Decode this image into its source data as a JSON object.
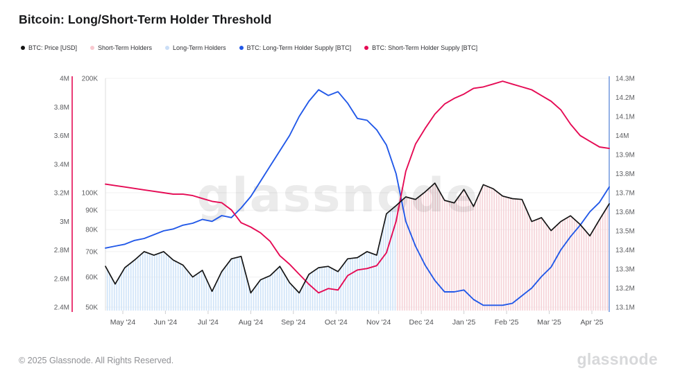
{
  "title": "Bitcoin: Long/Short-Term Holder Threshold",
  "watermark": "glassnode",
  "footer": {
    "copyright": "© 2025 Glassnode. All Rights Reserved.",
    "logo_text": "glassnode"
  },
  "legend": [
    {
      "label": "BTC: Price [USD]",
      "color": "#141414"
    },
    {
      "label": "Short-Term Holders",
      "color": "#f8c8cf"
    },
    {
      "label": "Long-Term Holders",
      "color": "#cadef7"
    },
    {
      "label": "BTC: Long-Term Holder Supply [BTC]",
      "color": "#2158e8"
    },
    {
      "label": "BTC: Short-Term Holder Supply [BTC]",
      "color": "#e50a54"
    }
  ],
  "chart_data": {
    "type": "line",
    "title": "Bitcoin: Long/Short-Term Holder Threshold",
    "x_labels": [
      "May '24",
      "Jun '24",
      "Jul '24",
      "Aug '24",
      "Sep '24",
      "Oct '24",
      "Nov '24",
      "Dec '24",
      "Jan '25",
      "Feb '25",
      "Mar '25",
      "Apr '25"
    ],
    "axes": {
      "sth_supply": {
        "side": "left-outer",
        "axis_color": "#e50a54",
        "tick_labels": [
          "4M",
          "3.8M",
          "3.6M",
          "3.4M",
          "3.2M",
          "3M",
          "2.8M",
          "2.6M",
          "2.4M"
        ],
        "range_m_btc": [
          2.4,
          4.0
        ],
        "scale": "linear"
      },
      "price_usd": {
        "side": "left-inner",
        "axis_color": "#d9d9d9",
        "tick_labels": [
          "200K",
          "100K",
          "90K",
          "80K",
          "70K",
          "60K",
          "50K"
        ],
        "tick_values_k": [
          200,
          100,
          90,
          80,
          70,
          60,
          50
        ],
        "range_k_usd": [
          50,
          200
        ],
        "scale": "log"
      },
      "lth_supply": {
        "side": "right",
        "axis_color": "#5b87d9",
        "tick_labels": [
          "14.3M",
          "14.2M",
          "14.1M",
          "14M",
          "13.9M",
          "13.8M",
          "13.7M",
          "13.6M",
          "13.5M",
          "13.4M",
          "13.3M",
          "13.2M",
          "13.1M"
        ],
        "range_m_btc": [
          13.1,
          14.3
        ],
        "scale": "linear"
      }
    },
    "grid": "horizontal-only",
    "legend_position": "top",
    "series": [
      {
        "name": "BTC: Price [USD]",
        "axis": "price_usd",
        "color": "#141414",
        "unit": "thousand USD",
        "sampling": "weekly Apr 2024 - Apr 2025",
        "values": [
          64,
          57.5,
          63.5,
          66.5,
          70,
          68.5,
          70,
          66.5,
          64.5,
          60,
          62.5,
          55,
          62,
          67,
          68,
          54.5,
          59,
          60.5,
          64,
          58,
          54.5,
          61,
          63.5,
          64,
          62,
          67,
          67.5,
          70,
          68.5,
          88,
          92.5,
          97.5,
          96,
          100.5,
          106,
          95.5,
          94,
          102,
          92,
          105,
          102.5,
          98,
          96.5,
          96,
          84,
          86,
          79.5,
          84,
          87,
          82.5,
          77,
          85,
          93.5
        ]
      },
      {
        "name": "BTC: Short-Term Holder Supply [BTC]",
        "axis": "sth_supply",
        "color": "#e50a54",
        "unit": "million BTC",
        "sampling": "weekly Apr 2024 - Apr 2025",
        "values": [
          3.26,
          3.25,
          3.24,
          3.23,
          3.22,
          3.21,
          3.2,
          3.19,
          3.19,
          3.18,
          3.16,
          3.14,
          3.13,
          3.08,
          2.99,
          2.96,
          2.92,
          2.86,
          2.76,
          2.7,
          2.63,
          2.56,
          2.5,
          2.53,
          2.52,
          2.62,
          2.66,
          2.67,
          2.69,
          2.78,
          3.0,
          3.35,
          3.54,
          3.65,
          3.75,
          3.82,
          3.86,
          3.89,
          3.93,
          3.94,
          3.96,
          3.98,
          3.96,
          3.94,
          3.92,
          3.88,
          3.84,
          3.78,
          3.68,
          3.6,
          3.56,
          3.52,
          3.51
        ]
      },
      {
        "name": "BTC: Long-Term Holder Supply [BTC]",
        "axis": "lth_supply",
        "color": "#2158e8",
        "unit": "million BTC",
        "sampling": "weekly Apr 2024 - Apr 2025",
        "values": [
          13.41,
          13.42,
          13.43,
          13.45,
          13.46,
          13.48,
          13.5,
          13.51,
          13.53,
          13.54,
          13.56,
          13.55,
          13.58,
          13.57,
          13.62,
          13.68,
          13.76,
          13.84,
          13.92,
          14.0,
          14.1,
          14.18,
          14.24,
          14.21,
          14.23,
          14.17,
          14.09,
          14.08,
          14.03,
          13.95,
          13.8,
          13.55,
          13.42,
          13.32,
          13.24,
          13.18,
          13.18,
          13.19,
          13.14,
          13.11,
          13.11,
          13.11,
          13.12,
          13.16,
          13.2,
          13.26,
          13.31,
          13.4,
          13.47,
          13.53,
          13.6,
          13.65,
          13.73
        ]
      }
    ],
    "shaded_regions": [
      {
        "name": "Long-Term Holders",
        "fill": "#cfe3f8",
        "style": "vertical-stripes under price line",
        "from_index": 0,
        "to_index": 30
      },
      {
        "name": "Short-Term Holders",
        "fill": "#f5d2d7",
        "style": "vertical-stripes under price line",
        "from_index": 30,
        "to_index": 52
      }
    ]
  }
}
